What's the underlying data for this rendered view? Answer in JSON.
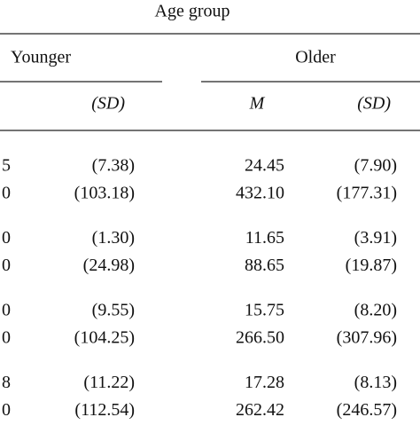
{
  "table": {
    "title": "Age group",
    "groups": [
      "Younger",
      "Older"
    ],
    "subheaders": [
      "(SD)",
      "M",
      "(SD)"
    ],
    "rows": [
      [
        "5",
        "(7.38)",
        "24.45",
        "(7.90)"
      ],
      [
        "0",
        "(103.18)",
        "432.10",
        "(177.31)"
      ],
      [
        "0",
        "(1.30)",
        "11.65",
        "(3.91)"
      ],
      [
        "0",
        "(24.98)",
        "88.65",
        "(19.87)"
      ],
      [
        "0",
        "(9.55)",
        "15.75",
        "(8.20)"
      ],
      [
        "0",
        "(104.25)",
        "266.50",
        "(307.96)"
      ],
      [
        "8",
        "(11.22)",
        "17.28",
        "(8.13)"
      ],
      [
        "0",
        "(112.54)",
        "262.42",
        "(246.57)"
      ]
    ]
  }
}
